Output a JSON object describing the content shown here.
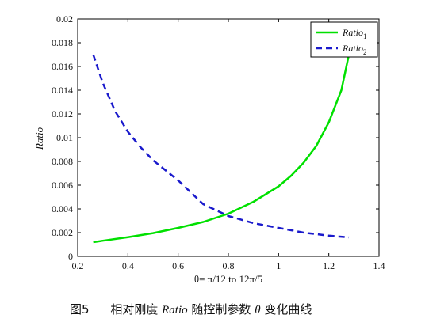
{
  "chart_data": {
    "type": "line",
    "xlabel": "θ= π/12 to 12π/5",
    "ylabel": "Ratio",
    "xlim": [
      0.2,
      1.4
    ],
    "ylim": [
      0,
      0.02
    ],
    "x_ticks": [
      "0.2",
      "0.4",
      "0.6",
      "0.8",
      "1",
      "1.2",
      "1.4"
    ],
    "y_ticks": [
      "0",
      "0.002",
      "0.004",
      "0.006",
      "0.008",
      "0.01",
      "0.012",
      "0.014",
      "0.016",
      "0.018",
      "0.02"
    ],
    "grid": false,
    "legend_position": "top-right",
    "series": [
      {
        "name": "Ratio1",
        "label_base": "Ratio",
        "label_sub": "1",
        "color": "#00e000",
        "style": "solid",
        "x": [
          0.262,
          0.3,
          0.4,
          0.5,
          0.6,
          0.7,
          0.8,
          0.9,
          1.0,
          1.05,
          1.1,
          1.15,
          1.2,
          1.25,
          1.28
        ],
        "y": [
          0.0012,
          0.00132,
          0.00162,
          0.00196,
          0.0024,
          0.0029,
          0.0036,
          0.0046,
          0.0059,
          0.0068,
          0.0079,
          0.0093,
          0.0113,
          0.014,
          0.017
        ]
      },
      {
        "name": "Ratio2",
        "label_base": "Ratio",
        "label_sub": "2",
        "color": "#1a1acc",
        "style": "dashed",
        "x": [
          0.262,
          0.3,
          0.35,
          0.4,
          0.45,
          0.5,
          0.6,
          0.7,
          0.8,
          0.9,
          1.0,
          1.1,
          1.2,
          1.28
        ],
        "y": [
          0.017,
          0.0146,
          0.0122,
          0.0105,
          0.0092,
          0.0081,
          0.0064,
          0.0044,
          0.0034,
          0.0028,
          0.0024,
          0.002,
          0.00175,
          0.0016
        ]
      }
    ]
  },
  "caption": {
    "figure_label": "图5",
    "text_before": "相对刚度",
    "text_italic": "Ratio",
    "text_middle": "随控制参数",
    "text_theta": "θ",
    "text_after": "变化曲线"
  }
}
